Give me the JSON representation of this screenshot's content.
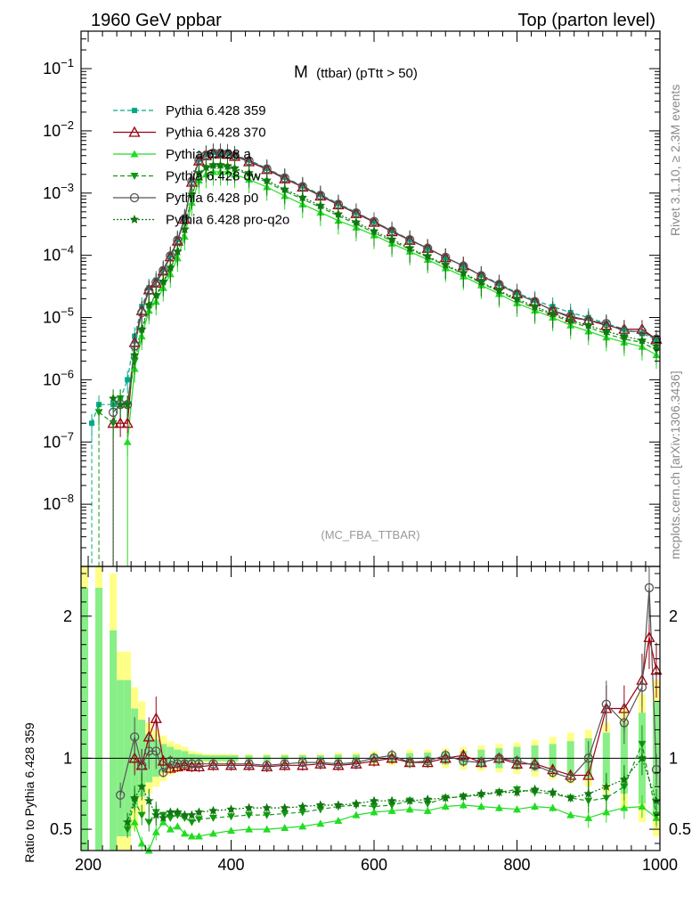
{
  "header": {
    "left": "1960 GeV ppbar",
    "right": "Top (parton level)"
  },
  "side": {
    "rivet": "Rivet 3.1.10, ≥ 2.3M events",
    "mcplots": "mcplots.cern.ch [arXiv:1306.3436]"
  },
  "colors": {
    "p359": "#00aa88",
    "p370": "#990011",
    "pa": "#22dd22",
    "pdw": "#119911",
    "pp0": "#555555",
    "pq2o": "#117711",
    "band_outer": "#ffff88",
    "band_inner": "#88ee88"
  },
  "chart_data": [
    {
      "type": "line",
      "title": "M",
      "title_suffix": "(ttbar) (pTtt > 50)",
      "watermark": "(MC_FBA_TTBAR)",
      "yscale": "log",
      "xlim": [
        190,
        1000
      ],
      "ylim": [
        1e-09,
        0.4
      ],
      "yticks": [
        "10^-8",
        "10^-7",
        "10^-6",
        "10^-5",
        "10^-4",
        "10^-3",
        "10^-2",
        "10^-1"
      ],
      "legend_position": "top-left",
      "x": [
        205,
        215,
        235,
        245,
        255,
        265,
        275,
        285,
        295,
        305,
        315,
        325,
        335,
        345,
        355,
        365,
        375,
        385,
        395,
        405,
        425,
        450,
        475,
        500,
        525,
        550,
        575,
        600,
        625,
        650,
        675,
        700,
        725,
        750,
        775,
        800,
        825,
        850,
        875,
        900,
        925,
        950,
        975,
        995
      ],
      "series": [
        {
          "name": "Pythia 6.428 359",
          "color_key": "p359",
          "style": "dashed",
          "marker": "square",
          "values": [
            2e-07,
            4e-07,
            4e-07,
            5e-07,
            1e-06,
            5e-06,
            1.5e-05,
            3e-05,
            4e-05,
            6e-05,
            0.0001,
            0.00018,
            0.0004,
            0.0016,
            0.0035,
            0.0042,
            0.0045,
            0.0045,
            0.0044,
            0.0041,
            0.0034,
            0.0025,
            0.0018,
            0.0013,
            0.00095,
            0.00068,
            0.00049,
            0.00035,
            0.00025,
            0.00018,
            0.00013,
            9.2e-05,
            6.7e-05,
            4.8e-05,
            3.5e-05,
            2.5e-05,
            1.9e-05,
            1.5e-05,
            1.2e-05,
            1e-05,
            8e-06,
            6.5e-06,
            5.5e-06,
            4.5e-06
          ]
        },
        {
          "name": "Pythia 6.428 370",
          "color_key": "p370",
          "style": "solid",
          "marker": "triangle-open",
          "values": [
            null,
            null,
            2e-07,
            2e-07,
            2e-07,
            4e-06,
            1.3e-05,
            2.8e-05,
            3.6e-05,
            5.6e-05,
            9.5e-05,
            0.00017,
            0.00038,
            0.0015,
            0.0033,
            0.004,
            0.0043,
            0.0043,
            0.0042,
            0.0039,
            0.0032,
            0.0024,
            0.0017,
            0.00125,
            0.0009,
            0.00065,
            0.00047,
            0.00034,
            0.00024,
            0.000175,
            0.00013,
            9.2e-05,
            6.8e-05,
            4.7e-05,
            3.4e-05,
            2.4e-05,
            1.8e-05,
            1.3e-05,
            1e-05,
            9e-06,
            7.5e-06,
            6.5e-06,
            6.5e-06,
            4.5e-06
          ]
        },
        {
          "name": "Pythia 6.428 a",
          "color_key": "pa",
          "style": "solid",
          "marker": "triangle",
          "values": [
            null,
            null,
            null,
            null,
            1e-07,
            1.5e-06,
            5e-06,
            1.3e-05,
            1.8e-05,
            3e-05,
            5e-05,
            9e-05,
            0.0002,
            0.0007,
            0.0016,
            0.002,
            0.0022,
            0.0022,
            0.0022,
            0.002,
            0.00165,
            0.00125,
            0.0009,
            0.00066,
            0.00049,
            0.00036,
            0.00028,
            0.00021,
            0.000155,
            0.000115,
            8.5e-05,
            6.2e-05,
            4.6e-05,
            3.3e-05,
            2.4e-05,
            1.7e-05,
            1.3e-05,
            1e-05,
            7.5e-06,
            6e-06,
            4.8e-06,
            4e-06,
            3.4e-06,
            2.5e-06
          ]
        },
        {
          "name": "Pythia 6.428 dw",
          "color_key": "pdw",
          "style": "dashed",
          "marker": "triangle-down",
          "values": [
            null,
            3e-07,
            2e-07,
            5e-07,
            4e-07,
            2e-06,
            6e-06,
            1.5e-05,
            2.2e-05,
            3.6e-05,
            6e-05,
            0.00011,
            0.00025,
            0.0009,
            0.002,
            0.0025,
            0.0027,
            0.0027,
            0.0026,
            0.0024,
            0.002,
            0.0015,
            0.00108,
            0.0008,
            0.00059,
            0.00043,
            0.00032,
            0.00023,
            0.00017,
            0.000125,
            9.3e-05,
            6.8e-05,
            5e-05,
            3.6e-05,
            2.6e-05,
            1.9e-05,
            1.4e-05,
            1.1e-05,
            8.5e-06,
            7e-06,
            5.5e-06,
            4.5e-06,
            4e-06,
            3e-06
          ]
        },
        {
          "name": "Pythia 6.428 p0",
          "color_key": "pp0",
          "style": "solid",
          "marker": "circle-open",
          "values": [
            null,
            null,
            3e-07,
            4e-07,
            4e-07,
            3.5e-06,
            1.2e-05,
            2.7e-05,
            3.7e-05,
            5.7e-05,
            9.8e-05,
            0.000175,
            0.00039,
            0.00155,
            0.0034,
            0.0041,
            0.0044,
            0.0044,
            0.0043,
            0.004,
            0.0033,
            0.00245,
            0.00175,
            0.00127,
            0.00092,
            0.00066,
            0.00048,
            0.00035,
            0.000245,
            0.000178,
            0.00013,
            9.3e-05,
            6.7e-05,
            4.7e-05,
            3.4e-05,
            2.4e-05,
            1.8e-05,
            1.3e-05,
            1.05e-05,
            9e-06,
            8e-06,
            6e-06,
            6e-06,
            4.5e-06
          ]
        },
        {
          "name": "Pythia 6.428 pro-q2o",
          "color_key": "pq2o",
          "style": "dotted",
          "marker": "star",
          "values": [
            null,
            null,
            5e-07,
            4e-07,
            4e-07,
            2.5e-06,
            6.5e-06,
            1.6e-05,
            2.3e-05,
            3.8e-05,
            6.4e-05,
            0.000115,
            0.00026,
            0.00095,
            0.0021,
            0.0026,
            0.0028,
            0.0028,
            0.0027,
            0.0025,
            0.0021,
            0.0016,
            0.00115,
            0.00085,
            0.00063,
            0.00046,
            0.00034,
            0.000245,
            0.00018,
            0.00013,
            9.7e-05,
            7e-05,
            5.2e-05,
            3.7e-05,
            2.7e-05,
            2e-05,
            1.5e-05,
            1.15e-05,
            9e-06,
            7.5e-06,
            6e-06,
            5e-06,
            4.3e-06,
            3.5e-06
          ]
        }
      ]
    },
    {
      "type": "line",
      "ylabel": "Ratio to Pythia 6.428 359",
      "xlim": [
        190,
        1000
      ],
      "ylim": [
        0.35,
        2.35
      ],
      "yticks": [
        "0.5",
        "1",
        "2"
      ],
      "xticks": [
        "200",
        "400",
        "600",
        "800",
        "1000"
      ],
      "reference_line": 1,
      "band_x": [
        195,
        215,
        235,
        245,
        255,
        265,
        275,
        285,
        295,
        305,
        315,
        325,
        335,
        345,
        355,
        365,
        375,
        385,
        395,
        405,
        425,
        450,
        475,
        500,
        525,
        550,
        575,
        600,
        625,
        650,
        675,
        700,
        725,
        750,
        775,
        800,
        825,
        850,
        875,
        900,
        925,
        950,
        975,
        995
      ],
      "band_outer_half": [
        1.5,
        1.5,
        1.3,
        0.75,
        0.75,
        0.5,
        0.4,
        0.25,
        0.2,
        0.16,
        0.12,
        0.1,
        0.08,
        0.05,
        0.04,
        0.03,
        0.03,
        0.03,
        0.03,
        0.03,
        0.03,
        0.03,
        0.03,
        0.03,
        0.03,
        0.04,
        0.04,
        0.05,
        0.05,
        0.06,
        0.06,
        0.07,
        0.08,
        0.09,
        0.1,
        0.11,
        0.13,
        0.15,
        0.18,
        0.2,
        0.25,
        0.35,
        0.45,
        0.55
      ],
      "band_inner_half": [
        1.2,
        1.2,
        0.9,
        0.55,
        0.55,
        0.35,
        0.27,
        0.17,
        0.13,
        0.1,
        0.08,
        0.06,
        0.05,
        0.03,
        0.025,
        0.02,
        0.02,
        0.02,
        0.02,
        0.02,
        0.02,
        0.02,
        0.02,
        0.02,
        0.02,
        0.025,
        0.025,
        0.03,
        0.03,
        0.035,
        0.04,
        0.045,
        0.05,
        0.06,
        0.07,
        0.08,
        0.09,
        0.1,
        0.12,
        0.14,
        0.18,
        0.25,
        0.32,
        0.4
      ],
      "series": [
        {
          "name": "Pythia 6.428 370",
          "color_key": "p370",
          "style": "solid",
          "marker": "triangle-open",
          "x": [
            265,
            275,
            285,
            295,
            305,
            315,
            325,
            335,
            345,
            355,
            375,
            400,
            425,
            450,
            475,
            500,
            525,
            550,
            575,
            600,
            625,
            650,
            675,
            700,
            725,
            750,
            775,
            800,
            825,
            850,
            875,
            900,
            925,
            950,
            975,
            985,
            995
          ],
          "values": [
            1.0,
            0.95,
            1.15,
            1.28,
            0.98,
            0.93,
            0.94,
            0.95,
            0.94,
            0.94,
            0.95,
            0.95,
            0.95,
            0.94,
            0.95,
            0.95,
            0.96,
            0.95,
            0.96,
            0.98,
            1.0,
            0.97,
            0.97,
            1.0,
            1.02,
            0.97,
            1.0,
            0.96,
            0.96,
            0.92,
            0.88,
            0.88,
            1.35,
            1.35,
            1.55,
            1.85,
            1.62
          ]
        },
        {
          "name": "Pythia 6.428 p0",
          "color_key": "pp0",
          "style": "solid",
          "marker": "circle-open",
          "x": [
            245,
            265,
            275,
            285,
            295,
            305,
            315,
            325,
            335,
            345,
            355,
            375,
            400,
            425,
            450,
            475,
            500,
            525,
            550,
            575,
            600,
            625,
            650,
            675,
            700,
            725,
            750,
            775,
            800,
            825,
            850,
            875,
            900,
            925,
            950,
            975,
            985,
            995
          ],
          "values": [
            0.74,
            1.15,
            0.95,
            1.05,
            1.05,
            0.9,
            0.98,
            0.96,
            0.96,
            0.96,
            0.96,
            0.96,
            0.96,
            0.96,
            0.95,
            0.96,
            0.97,
            0.97,
            0.96,
            0.97,
            1.0,
            1.02,
            0.97,
            0.98,
            1.02,
            0.98,
            0.97,
            1.0,
            0.98,
            0.95,
            0.9,
            0.86,
            1.0,
            1.38,
            1.25,
            1.5,
            2.2,
            0.92
          ]
        },
        {
          "name": "Pythia 6.428 a",
          "color_key": "pa",
          "style": "solid",
          "marker": "triangle",
          "x": [
            265,
            275,
            285,
            295,
            305,
            315,
            325,
            335,
            345,
            355,
            375,
            400,
            425,
            450,
            475,
            500,
            525,
            550,
            575,
            600,
            625,
            650,
            675,
            700,
            725,
            750,
            775,
            800,
            825,
            850,
            875,
            900,
            925,
            950,
            975,
            995
          ],
          "values": [
            0.55,
            0.4,
            0.35,
            0.48,
            0.55,
            0.5,
            0.52,
            0.47,
            0.45,
            0.45,
            0.47,
            0.49,
            0.5,
            0.5,
            0.51,
            0.52,
            0.54,
            0.56,
            0.6,
            0.62,
            0.63,
            0.64,
            0.63,
            0.66,
            0.67,
            0.66,
            0.65,
            0.64,
            0.66,
            0.65,
            0.6,
            0.58,
            0.62,
            0.65,
            0.66,
            0.58
          ]
        },
        {
          "name": "Pythia 6.428 dw",
          "color_key": "pdw",
          "style": "dashed",
          "marker": "triangle-down",
          "x": [
            255,
            265,
            275,
            285,
            295,
            305,
            315,
            325,
            335,
            345,
            355,
            375,
            400,
            425,
            450,
            475,
            500,
            525,
            550,
            575,
            600,
            625,
            650,
            675,
            700,
            725,
            750,
            775,
            800,
            825,
            850,
            875,
            900,
            925,
            950,
            975,
            995
          ],
          "values": [
            0.5,
            0.7,
            0.6,
            0.55,
            0.62,
            0.6,
            0.58,
            0.6,
            0.58,
            0.55,
            0.57,
            0.58,
            0.59,
            0.6,
            0.6,
            0.61,
            0.62,
            0.64,
            0.66,
            0.67,
            0.66,
            0.67,
            0.7,
            0.68,
            0.72,
            0.73,
            0.74,
            0.76,
            0.78,
            0.76,
            0.75,
            0.72,
            0.7,
            0.72,
            0.8,
            1.1,
            0.6
          ]
        },
        {
          "name": "Pythia 6.428 pro-q2o",
          "color_key": "pq2o",
          "style": "dotted",
          "marker": "star",
          "x": [
            255,
            265,
            275,
            285,
            295,
            305,
            315,
            325,
            335,
            345,
            355,
            375,
            400,
            425,
            450,
            475,
            500,
            525,
            550,
            575,
            600,
            625,
            650,
            675,
            700,
            725,
            750,
            775,
            800,
            825,
            850,
            875,
            900,
            925,
            950,
            975,
            995
          ],
          "values": [
            0.55,
            0.72,
            0.8,
            0.7,
            0.6,
            0.58,
            0.62,
            0.62,
            0.6,
            0.6,
            0.62,
            0.63,
            0.64,
            0.65,
            0.65,
            0.65,
            0.66,
            0.67,
            0.67,
            0.68,
            0.7,
            0.7,
            0.7,
            0.71,
            0.72,
            0.73,
            0.75,
            0.76,
            0.76,
            0.78,
            0.76,
            0.72,
            0.75,
            0.8,
            0.85,
            1.0,
            0.7
          ]
        }
      ]
    }
  ]
}
